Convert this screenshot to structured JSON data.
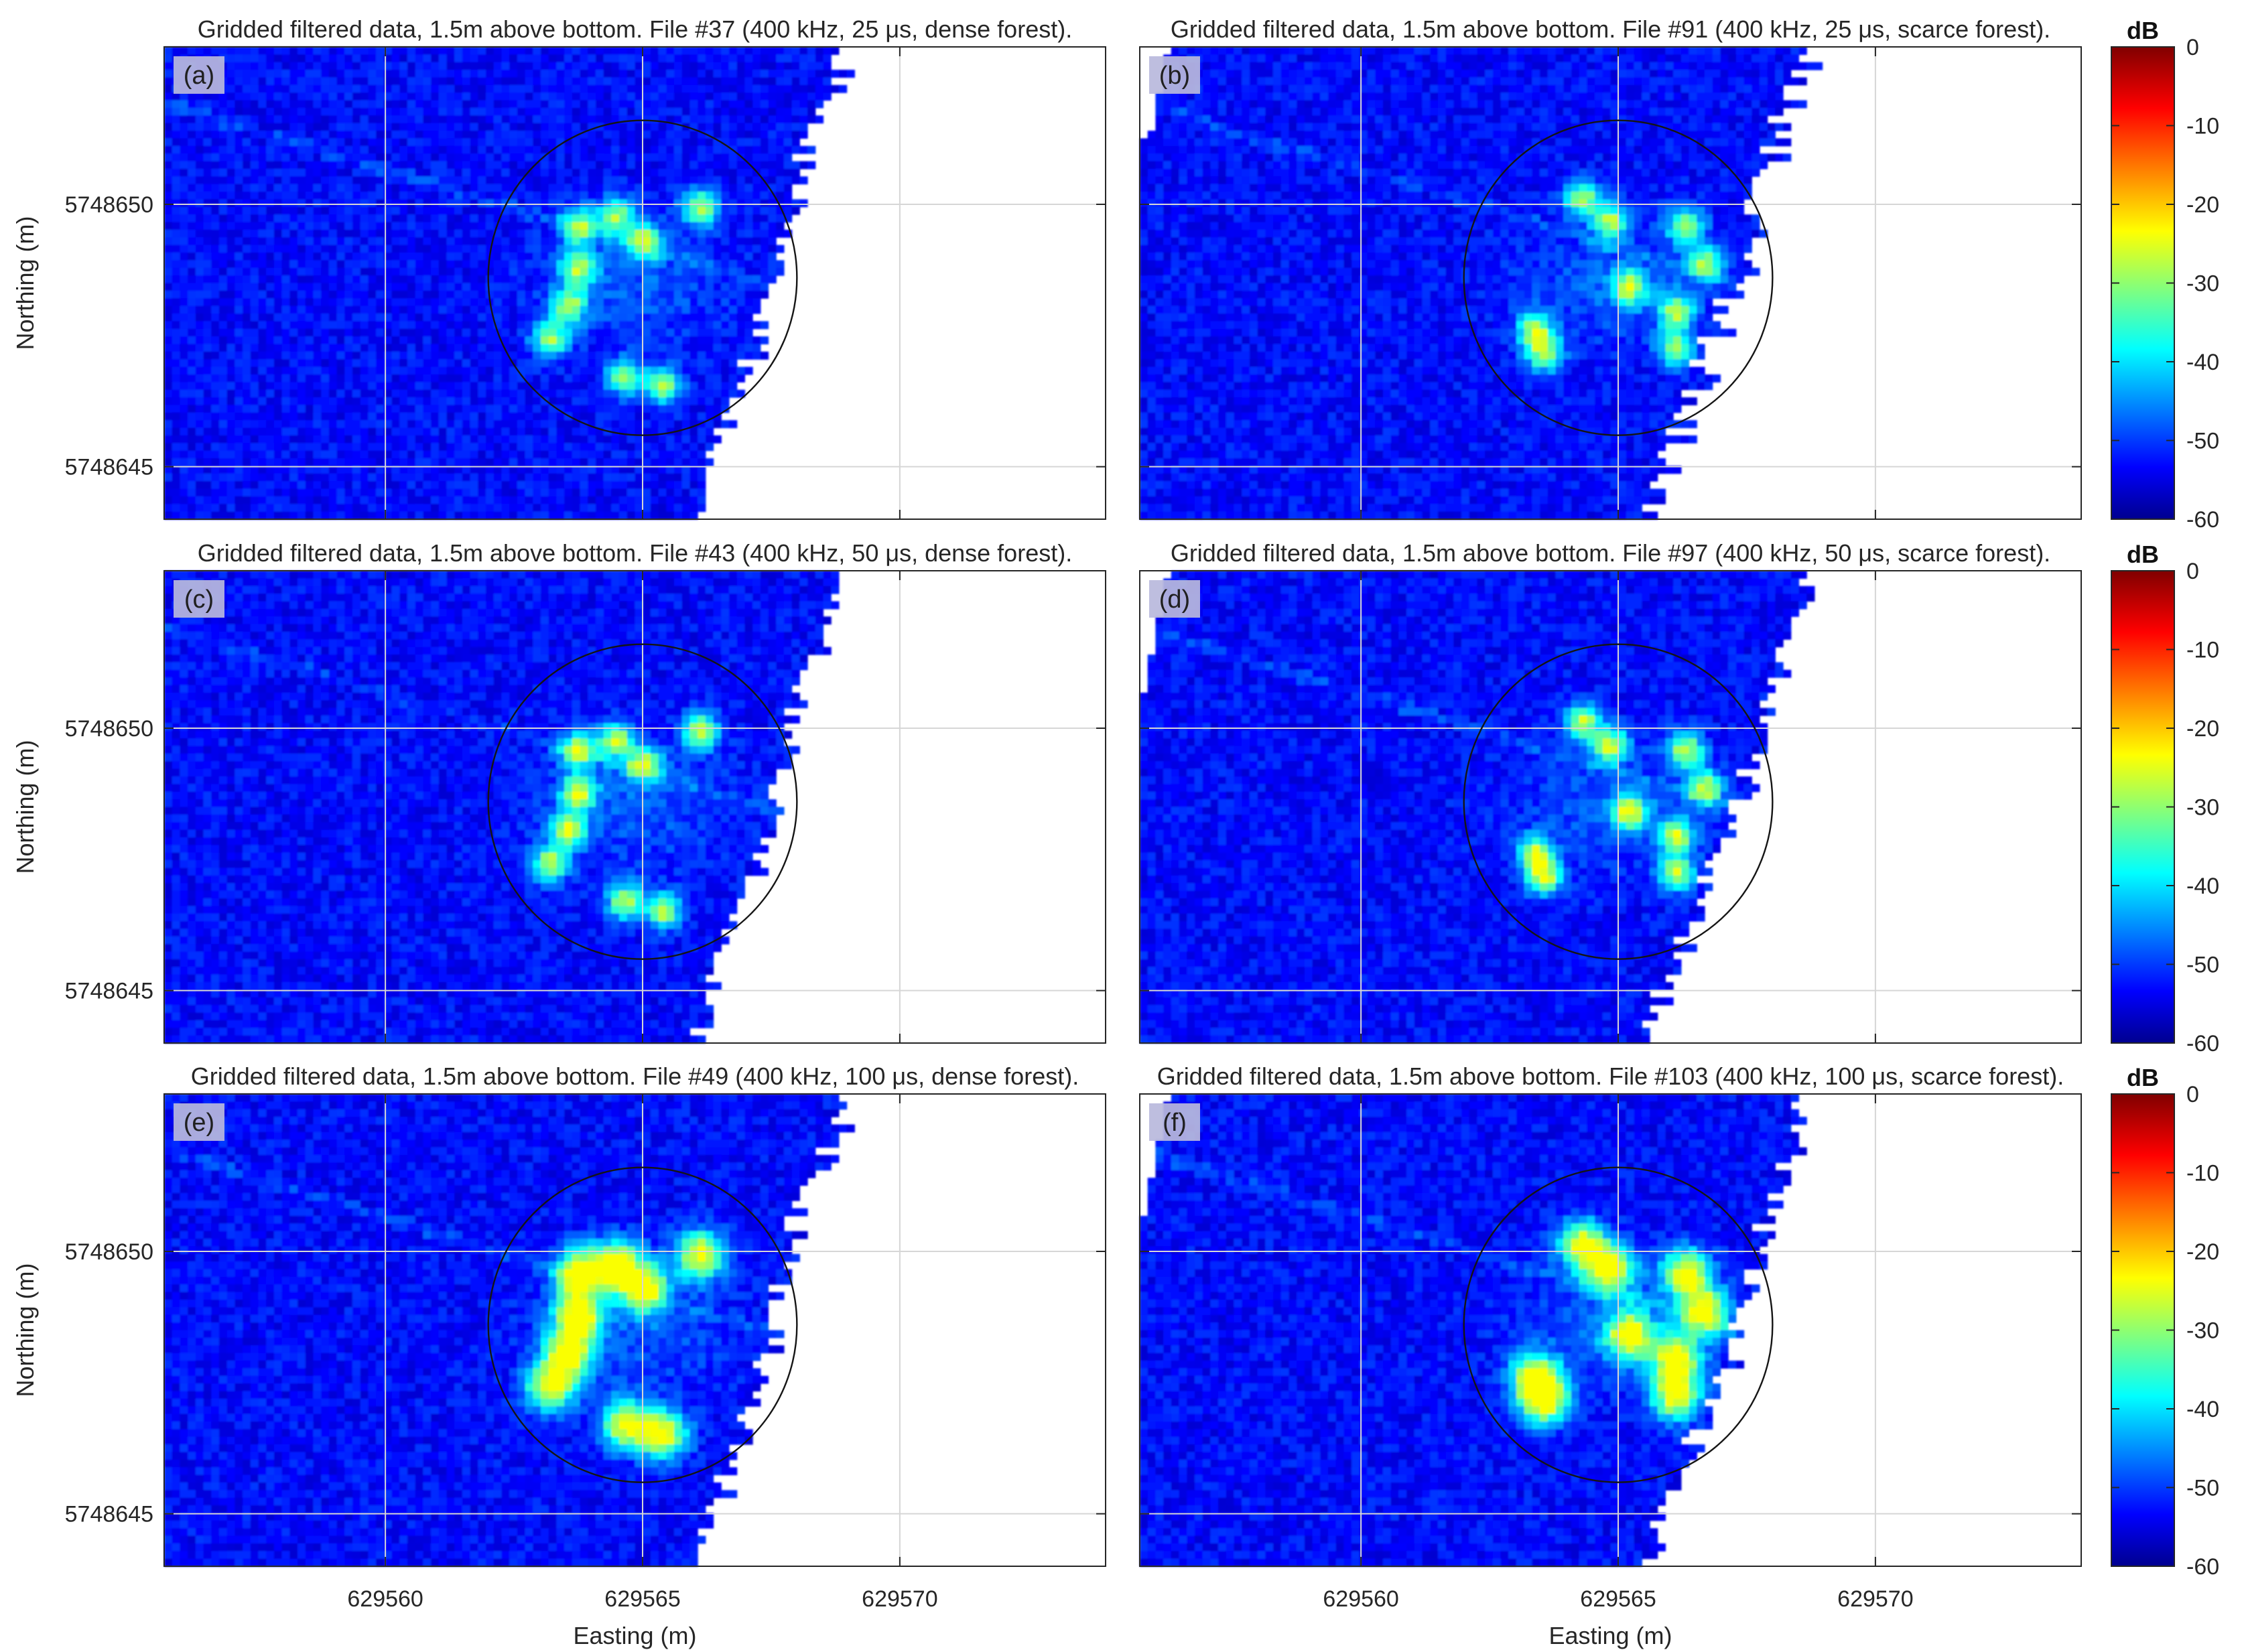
{
  "chart_data": {
    "type": "heatmap",
    "colormap": "jet",
    "grid": true,
    "x_axis": {
      "label": "Easting (m)",
      "ticks": [
        "629560",
        "629565",
        "629570"
      ],
      "range": [
        629555.7,
        629574.0
      ]
    },
    "y_axis": {
      "label": "Northing (m)",
      "ticks": [
        "5748650",
        "5748645"
      ],
      "range": [
        5748644.0,
        5748653.0
      ]
    },
    "colorbar": {
      "unit": "dB",
      "range": [
        -60,
        0
      ],
      "ticks": [
        "0",
        "-10",
        "-20",
        "-30",
        "-40",
        "-50",
        "-60"
      ]
    },
    "target_circle": {
      "center": [
        629565.0,
        5748648.6
      ],
      "radius_m": 3.0
    },
    "panels": [
      {
        "label": "(a)",
        "title": "Gridded filtered data, 1.5m above bottom. File #37 (400 kHz, 25 μs, dense forest).",
        "file": 37,
        "frequency_khz": 400,
        "pulse_us": 25,
        "forest": "dense"
      },
      {
        "label": "(b)",
        "title": "Gridded filtered data, 1.5m above bottom. File #91 (400 kHz, 25 μs, scarce forest).",
        "file": 91,
        "frequency_khz": 400,
        "pulse_us": 25,
        "forest": "scarce"
      },
      {
        "label": "(c)",
        "title": "Gridded filtered data, 1.5m above bottom. File #43 (400 kHz, 50 μs, dense forest).",
        "file": 43,
        "frequency_khz": 400,
        "pulse_us": 50,
        "forest": "dense"
      },
      {
        "label": "(d)",
        "title": "Gridded filtered data, 1.5m above bottom. File #97 (400 kHz, 50 μs, scarce forest).",
        "file": 97,
        "frequency_khz": 400,
        "pulse_us": 50,
        "forest": "scarce"
      },
      {
        "label": "(e)",
        "title": "Gridded filtered data, 1.5m above bottom. File #49 (400 kHz, 100 μs, dense forest).",
        "file": 49,
        "frequency_khz": 400,
        "pulse_us": 100,
        "forest": "dense"
      },
      {
        "label": "(f)",
        "title": "Gridded filtered data, 1.5m above bottom. File #103 (400 kHz, 100 μs, scarce forest).",
        "file": 103,
        "frequency_khz": 400,
        "pulse_us": 100,
        "forest": "scarce"
      }
    ]
  }
}
